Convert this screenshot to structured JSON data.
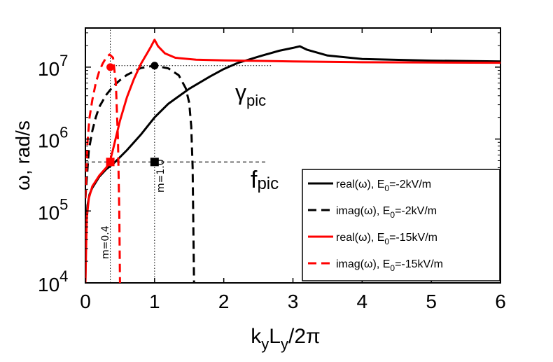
{
  "chart_data": {
    "type": "line",
    "xlabel": {
      "base": "k",
      "sub1": "y",
      "mid": "L",
      "sub2": "y",
      "tail": "/2π"
    },
    "ylabel": {
      "base": "ω, rad/s"
    },
    "x_ticks": [
      "0",
      "1",
      "2",
      "3",
      "4",
      "5",
      "6"
    ],
    "x_tick_values": [
      0,
      1,
      2,
      3,
      4,
      5,
      6
    ],
    "y_ticks": [
      {
        "base": "10",
        "exp": "4",
        "value": 10000
      },
      {
        "base": "10",
        "exp": "5",
        "value": 100000
      },
      {
        "base": "10",
        "exp": "6",
        "value": 1000000
      },
      {
        "base": "10",
        "exp": "7",
        "value": 10000000
      }
    ],
    "xlim": [
      0,
      6
    ],
    "ylim": [
      10000,
      35000000
    ],
    "yscale": "log",
    "series": [
      {
        "name": "real(ω), E0=-2kV/m",
        "color": "#000000",
        "dash": "solid",
        "x": [
          0.0,
          0.01,
          0.03,
          0.06,
          0.1,
          0.2,
          0.3,
          0.4,
          0.5,
          0.6,
          0.8,
          1.0,
          1.2,
          1.5,
          1.8,
          2.0,
          2.2,
          2.5,
          2.8,
          3.0,
          3.1,
          3.2,
          3.5,
          4.0,
          5.0,
          6.0
        ],
        "y": [
          10000,
          60000,
          120000,
          170000,
          210000,
          300000,
          380000,
          450000,
          560000,
          700000,
          1150000,
          2000000,
          3100000,
          5000000,
          7400000,
          9400000,
          11400000,
          14000000,
          16900000,
          18500000,
          19500000,
          17500000,
          14500000,
          13000000,
          12300000,
          12000000
        ]
      },
      {
        "name": "imag(ω), E0=-2kV/m",
        "color": "#000000",
        "dash": "dashed",
        "x": [
          0.0,
          0.05,
          0.1,
          0.15,
          0.2,
          0.3,
          0.4,
          0.5,
          0.6,
          0.8,
          1.0,
          1.2,
          1.35,
          1.45,
          1.5,
          1.53,
          1.55,
          1.56,
          1.57
        ],
        "y": [
          150000,
          700000,
          1300000,
          2000000,
          2800000,
          4100000,
          5400000,
          6600000,
          7800000,
          9700000,
          10500000,
          9600000,
          7700000,
          5100000,
          3200000,
          1500000,
          400000,
          60000,
          10000
        ]
      },
      {
        "name": "real(ω), E0=-15kV/m",
        "color": "#ff0000",
        "dash": "solid",
        "x": [
          0.0,
          0.02,
          0.05,
          0.1,
          0.2,
          0.3,
          0.35,
          0.4,
          0.5,
          0.6,
          0.7,
          0.8,
          0.9,
          0.95,
          1.0,
          1.05,
          1.15,
          1.3,
          1.6,
          2.0,
          3.0,
          4.0,
          5.0,
          6.0
        ],
        "y": [
          10000,
          80000,
          150000,
          220000,
          310000,
          400000,
          470000,
          720000,
          1800000,
          3800000,
          6800000,
          11000000,
          16000000,
          19500000,
          24000000,
          19500000,
          15500000,
          13500000,
          12700000,
          12400000,
          12000000,
          11700000,
          11600000,
          11500000
        ]
      },
      {
        "name": "imag(ω), E0=-15kV/m",
        "color": "#ff0000",
        "dash": "dashed",
        "x": [
          0.0,
          0.03,
          0.06,
          0.1,
          0.15,
          0.2,
          0.25,
          0.3,
          0.35,
          0.4,
          0.44,
          0.47,
          0.49,
          0.5
        ],
        "y": [
          150000,
          900000,
          2000000,
          3500000,
          6000000,
          8800000,
          11200000,
          13600000,
          15000000,
          13500000,
          6000000,
          1000000,
          100000,
          10000
        ]
      }
    ],
    "markers": [
      {
        "shape": "circle",
        "color": "#ff0000",
        "x": 0.36,
        "y": 10000000
      },
      {
        "shape": "circle",
        "color": "#000000",
        "x": 1.0,
        "y": 10500000
      },
      {
        "shape": "square",
        "color": "#ff0000",
        "x": 0.36,
        "y": 480000
      },
      {
        "shape": "square",
        "color": "#000000",
        "x": 1.0,
        "y": 480000
      }
    ],
    "guides": [
      {
        "kind": "vertical",
        "x": 0.36,
        "y_from": 10000,
        "y_to": 35000000,
        "dash": "dotted"
      },
      {
        "kind": "vertical",
        "x": 1.0,
        "y_from": 10000,
        "y_to": 10500000,
        "dash": "dotted"
      },
      {
        "kind": "horizontal",
        "y": 10500000,
        "x_from": 0.36,
        "x_to": 2.7,
        "dash": "dotted"
      },
      {
        "kind": "horizontal",
        "y": 480000,
        "x_from": 0.0,
        "x_to": 2.6,
        "dash": "dashed"
      }
    ],
    "annotations": {
      "m_left": "m=0.4",
      "m_right": "m=1.0",
      "gamma_label": {
        "base": "γ",
        "sub": "pic"
      },
      "f_label": {
        "base": "f",
        "sub": "pic"
      }
    },
    "legend": {
      "position": "bottom-right",
      "entries": [
        {
          "prefix": "real(ω), E",
          "sub": "0",
          "suffix": "=-2kV/m",
          "color": "#000000",
          "dash": "solid"
        },
        {
          "prefix": "imag(ω), E",
          "sub": "0",
          "suffix": "=-2kV/m",
          "color": "#000000",
          "dash": "dashed"
        },
        {
          "prefix": "real(ω), E",
          "sub": "0",
          "suffix": "=-15kV/m",
          "color": "#ff0000",
          "dash": "solid"
        },
        {
          "prefix": "imag(ω), E",
          "sub": "0",
          "suffix": "=-15kV/m",
          "color": "#ff0000",
          "dash": "dashed"
        }
      ]
    }
  }
}
